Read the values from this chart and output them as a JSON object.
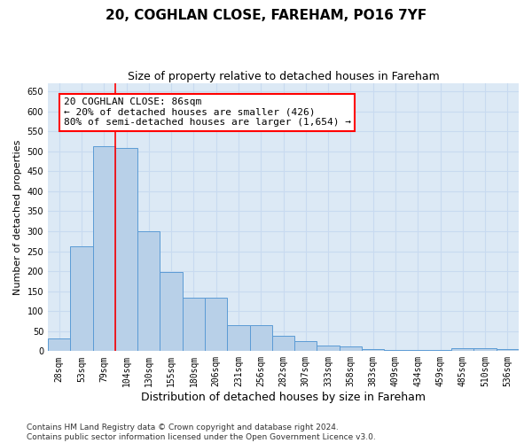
{
  "title1": "20, COGHLAN CLOSE, FAREHAM, PO16 7YF",
  "title2": "Size of property relative to detached houses in Fareham",
  "xlabel": "Distribution of detached houses by size in Fareham",
  "ylabel": "Number of detached properties",
  "categories": [
    "28sqm",
    "53sqm",
    "79sqm",
    "104sqm",
    "130sqm",
    "155sqm",
    "180sqm",
    "206sqm",
    "231sqm",
    "256sqm",
    "282sqm",
    "307sqm",
    "333sqm",
    "358sqm",
    "383sqm",
    "409sqm",
    "434sqm",
    "459sqm",
    "485sqm",
    "510sqm",
    "536sqm"
  ],
  "values": [
    32,
    263,
    512,
    508,
    301,
    197,
    133,
    133,
    65,
    65,
    38,
    25,
    14,
    11,
    5,
    4,
    4,
    4,
    7,
    7,
    6
  ],
  "bar_color": "#b8d0e8",
  "bar_edge_color": "#5b9bd5",
  "grid_color": "#c8daf0",
  "bg_color": "#dce9f5",
  "vline_x": 2.5,
  "vline_color": "red",
  "annotation_text": "20 COGHLAN CLOSE: 86sqm\n← 20% of detached houses are smaller (426)\n80% of semi-detached houses are larger (1,654) →",
  "annotation_box_color": "white",
  "annotation_box_edge_color": "red",
  "ylim": [
    0,
    670
  ],
  "yticks": [
    0,
    50,
    100,
    150,
    200,
    250,
    300,
    350,
    400,
    450,
    500,
    550,
    600,
    650
  ],
  "footnote": "Contains HM Land Registry data © Crown copyright and database right 2024.\nContains public sector information licensed under the Open Government Licence v3.0.",
  "title1_fontsize": 11,
  "title2_fontsize": 9,
  "xlabel_fontsize": 9,
  "ylabel_fontsize": 8,
  "tick_fontsize": 7,
  "annotation_fontsize": 8,
  "footnote_fontsize": 6.5
}
